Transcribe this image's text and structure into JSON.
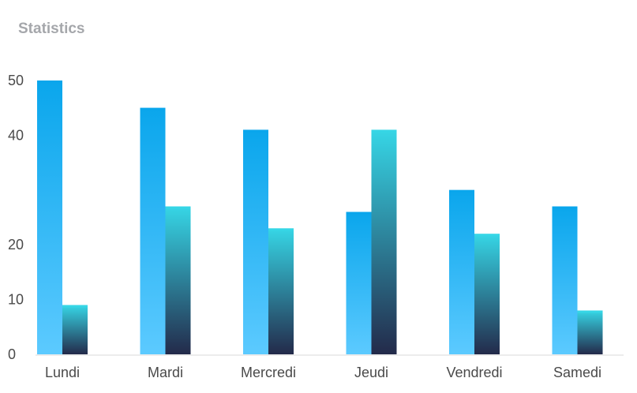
{
  "header": {
    "title": "Statistics"
  },
  "chart_data": {
    "type": "bar",
    "title": "Statistics",
    "xlabel": "",
    "ylabel": "",
    "categories": [
      "Lundi",
      "Mardi",
      "Mercredi",
      "Jeudi",
      "Vendredi",
      "Samedi"
    ],
    "series": [
      {
        "values": [
          50,
          45,
          41,
          26,
          30,
          27
        ]
      },
      {
        "values": [
          9,
          27,
          23,
          41,
          22,
          8
        ]
      }
    ],
    "ylim": [
      0,
      51
    ],
    "yticks": [
      {
        "value": 0,
        "label": "0"
      },
      {
        "value": 10,
        "label": "10"
      },
      {
        "value": 20,
        "label": "20"
      },
      {
        "value": 40,
        "label": "40"
      },
      {
        "value": 50,
        "label": "50"
      }
    ],
    "grid": false,
    "legend": "none",
    "colors": {
      "series1_top": "#0aa6ec",
      "series1_bottom": "#5ccaff",
      "series2_top": "#36d6e6",
      "series2_bottom": "#232a4a",
      "axis": "#e6e6e6"
    }
  }
}
